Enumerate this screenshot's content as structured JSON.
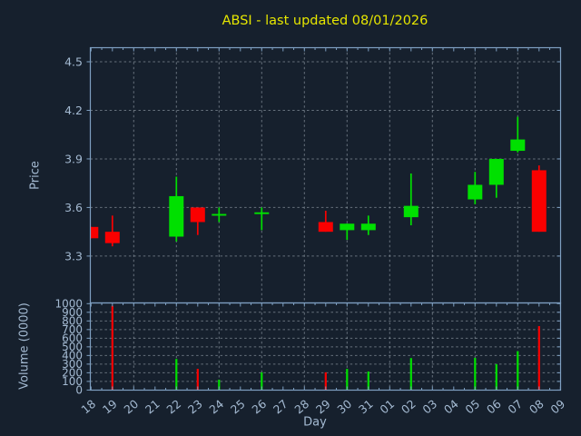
{
  "title": "ABSI - last updated 08/01/2026",
  "colors": {
    "background": "#16202d",
    "spine": "#7e9fc1",
    "tick_label": "#a4bad2",
    "grid": "#aab4be",
    "title": "#e6e600",
    "up": "#00e000",
    "down": "#fa0000"
  },
  "price_axis": {
    "label": "Price",
    "ticks": [
      4.5,
      4.2,
      3.9,
      3.6,
      3.3
    ],
    "range": [
      3.01,
      4.6
    ]
  },
  "volume_axis": {
    "label": "Volume (0000)",
    "ticks": [
      1000,
      900,
      800,
      700,
      600,
      500,
      400,
      300,
      200,
      100,
      0
    ],
    "range": [
      0,
      1010
    ]
  },
  "x_axis": {
    "label": "Day",
    "categories": [
      "18",
      "19",
      "20",
      "21",
      "22",
      "23",
      "24",
      "25",
      "26",
      "27",
      "28",
      "29",
      "30",
      "31",
      "01",
      "02",
      "03",
      "04",
      "05",
      "06",
      "07",
      "08",
      "09"
    ],
    "gridline_days": [
      "20",
      "22",
      "24",
      "26",
      "28",
      "30",
      "01",
      "03",
      "05",
      "07"
    ]
  },
  "chart_data": {
    "type": "candlestick+volume",
    "title": "ABSI - last updated 08/01/2026",
    "xlabel": "Day",
    "ylabel_price": "Price",
    "ylabel_volume": "Volume (0000)",
    "grid": "dashed, horizontal at price ticks and every 100 volume, vertical every 2nd day",
    "legend": "none",
    "x": [
      "18",
      "19",
      "20",
      "21",
      "22",
      "23",
      "24",
      "25",
      "26",
      "27",
      "28",
      "29",
      "30",
      "31",
      "01",
      "02",
      "03",
      "04",
      "05",
      "06",
      "07",
      "08",
      "09"
    ],
    "candles": [
      {
        "day": "18",
        "open": 3.48,
        "high": 3.48,
        "low": 3.41,
        "close": 3.41,
        "volume": 0
      },
      {
        "day": "19",
        "open": 3.45,
        "high": 3.55,
        "low": 3.36,
        "close": 3.38,
        "volume": 975
      },
      {
        "day": "22",
        "open": 3.42,
        "high": 3.79,
        "low": 3.39,
        "close": 3.67,
        "volume": 360
      },
      {
        "day": "23",
        "open": 3.6,
        "high": 3.6,
        "low": 3.43,
        "close": 3.51,
        "volume": 245
      },
      {
        "day": "24",
        "open": 3.55,
        "high": 3.6,
        "low": 3.51,
        "close": 3.56,
        "volume": 120
      },
      {
        "day": "26",
        "open": 3.56,
        "high": 3.6,
        "low": 3.46,
        "close": 3.57,
        "volume": 205
      },
      {
        "day": "29",
        "open": 3.51,
        "high": 3.58,
        "low": 3.45,
        "close": 3.45,
        "volume": 205
      },
      {
        "day": "30",
        "open": 3.46,
        "high": 3.5,
        "low": 3.4,
        "close": 3.5,
        "volume": 245
      },
      {
        "day": "31",
        "open": 3.46,
        "high": 3.55,
        "low": 3.43,
        "close": 3.5,
        "volume": 215
      },
      {
        "day": "02",
        "open": 3.54,
        "high": 3.81,
        "low": 3.49,
        "close": 3.61,
        "volume": 370
      },
      {
        "day": "05",
        "open": 3.65,
        "high": 3.82,
        "low": 3.62,
        "close": 3.74,
        "volume": 373
      },
      {
        "day": "06",
        "open": 3.74,
        "high": 3.9,
        "low": 3.66,
        "close": 3.9,
        "volume": 300
      },
      {
        "day": "07",
        "open": 3.95,
        "high": 4.16,
        "low": 3.94,
        "close": 4.02,
        "volume": 450
      },
      {
        "day": "08",
        "open": 3.83,
        "high": 3.86,
        "low": 3.45,
        "close": 3.45,
        "volume": 740
      }
    ]
  }
}
